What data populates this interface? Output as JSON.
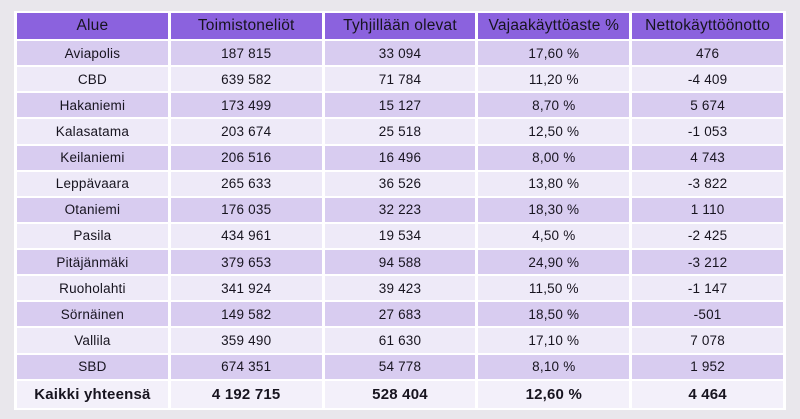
{
  "colors": {
    "page_bg": "#E9E7EC",
    "header_bg": "#8B62DE",
    "row_odd_bg": "#D8CCF0",
    "row_even_bg": "#EEEAF8",
    "total_row_bg": "#F3F0FA",
    "separator": "#FFFFFF",
    "text": "#17141F"
  },
  "chart_data": {
    "type": "table",
    "columns": [
      "Alue",
      "Toimistoneliöt",
      "Tyhjillään olevat",
      "Vajaakäyttöaste %",
      "Nettokäyttöönotto"
    ],
    "rows": [
      [
        "Aviapolis",
        "187 815",
        "33 094",
        "17,60 %",
        "476"
      ],
      [
        "CBD",
        "639 582",
        "71 784",
        "11,20 %",
        "-4 409"
      ],
      [
        "Hakaniemi",
        "173 499",
        "15 127",
        "8,70 %",
        "5 674"
      ],
      [
        "Kalasatama",
        "203 674",
        "25 518",
        "12,50 %",
        "-1 053"
      ],
      [
        "Keilaniemi",
        "206 516",
        "16 496",
        "8,00 %",
        "4 743"
      ],
      [
        "Leppävaara",
        "265 633",
        "36 526",
        "13,80 %",
        "-3 822"
      ],
      [
        "Otaniemi",
        "176 035",
        "32 223",
        "18,30 %",
        "1 110"
      ],
      [
        "Pasila",
        "434 961",
        "19 534",
        "4,50 %",
        "-2 425"
      ],
      [
        "Pitäjänmäki",
        "379 653",
        "94 588",
        "24,90 %",
        "-3 212"
      ],
      [
        "Ruoholahti",
        "341 924",
        "39 423",
        "11,50 %",
        "-1 147"
      ],
      [
        "Sörnäinen",
        "149 582",
        "27 683",
        "18,50 %",
        "-501"
      ],
      [
        "Vallila",
        "359 490",
        "61 630",
        "17,10 %",
        "7 078"
      ],
      [
        "SBD",
        "674 351",
        "54 778",
        "8,10 %",
        "1 952"
      ]
    ],
    "total": [
      "Kaikki yhteensä",
      "4 192 715",
      "528 404",
      "12,60 %",
      "4 464"
    ]
  }
}
